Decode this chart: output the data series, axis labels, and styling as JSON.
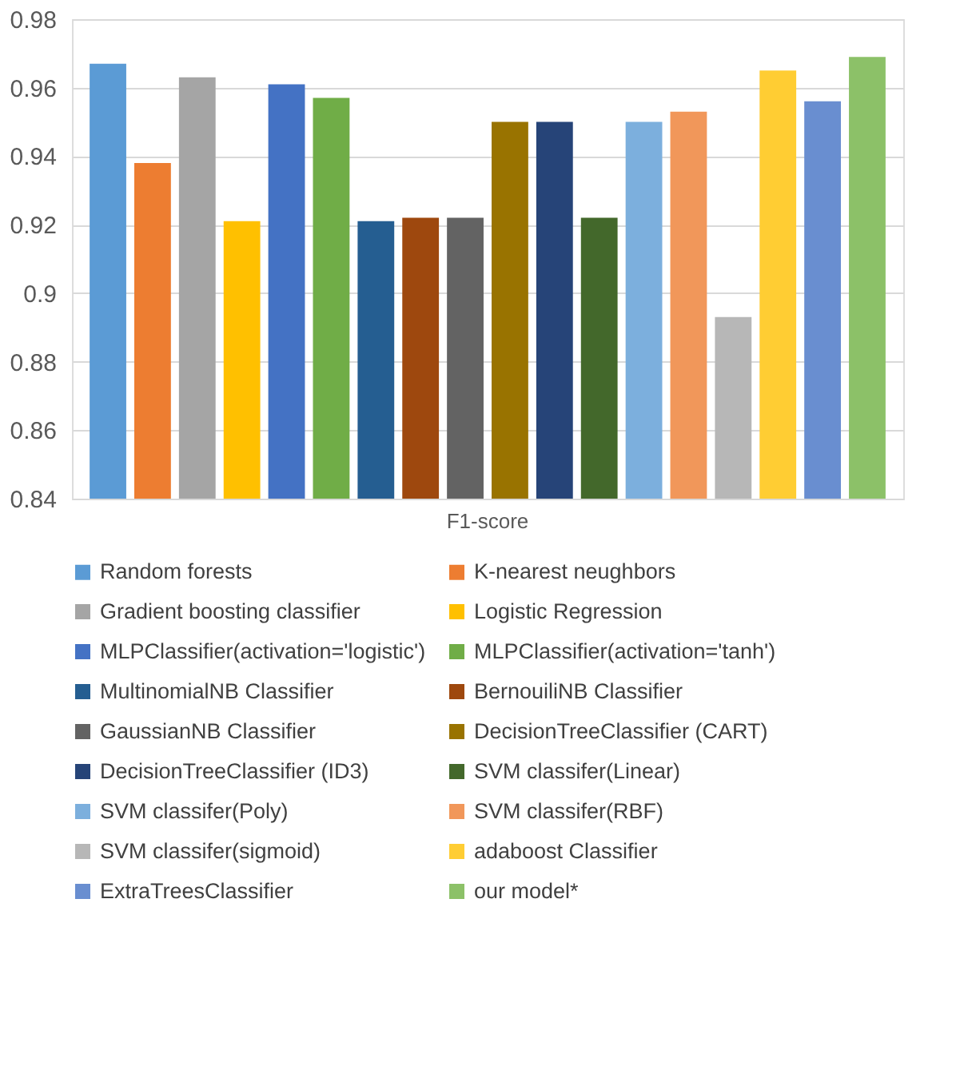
{
  "chart_data": {
    "type": "bar",
    "categories": [
      "F1-score"
    ],
    "series": [
      {
        "name": "Random forests",
        "color": "#5b9bd5",
        "values": [
          0.967
        ]
      },
      {
        "name": "K-nearest neughbors",
        "color": "#ed7d31",
        "values": [
          0.938
        ]
      },
      {
        "name": "Gradient boosting classifier",
        "color": "#a5a5a5",
        "values": [
          0.963
        ]
      },
      {
        "name": "Logistic Regression",
        "color": "#ffc000",
        "values": [
          0.921
        ]
      },
      {
        "name": "MLPClassifier(activation='logistic')",
        "color": "#4472c4",
        "values": [
          0.961
        ]
      },
      {
        "name": "MLPClassifier(activation='tanh')",
        "color": "#70ad47",
        "values": [
          0.957
        ]
      },
      {
        "name": "MultinomialNB  Classifier",
        "color": "#255e91",
        "values": [
          0.921
        ]
      },
      {
        "name": "BernouiliNB Classifier",
        "color": "#9e480e",
        "values": [
          0.922
        ]
      },
      {
        "name": "GaussianNB Classifier",
        "color": "#636363",
        "values": [
          0.922
        ]
      },
      {
        "name": "DecisionTreeClassifier (CART)",
        "color": "#997300",
        "values": [
          0.95
        ]
      },
      {
        "name": "DecisionTreeClassifier (ID3)",
        "color": "#264478",
        "values": [
          0.95
        ]
      },
      {
        "name": "SVM classifer(Linear)",
        "color": "#43682b",
        "values": [
          0.922
        ]
      },
      {
        "name": "SVM classifer(Poly)",
        "color": "#7cafdd",
        "values": [
          0.95
        ]
      },
      {
        "name": "SVM classifer(RBF)",
        "color": "#f1975a",
        "values": [
          0.953
        ]
      },
      {
        "name": "SVM classifer(sigmoid)",
        "color": "#b7b7b7",
        "values": [
          0.893
        ]
      },
      {
        "name": "adaboost Classifier",
        "color": "#ffcd33",
        "values": [
          0.965
        ]
      },
      {
        "name": "ExtraTreesClassifier",
        "color": "#698ed0",
        "values": [
          0.956
        ]
      },
      {
        "name": "our model*",
        "color": "#8cc168",
        "values": [
          0.969
        ]
      }
    ],
    "ylim": [
      0.84,
      0.98
    ],
    "yticks": [
      0.84,
      0.86,
      0.88,
      0.9,
      0.92,
      0.94,
      0.96,
      0.98
    ],
    "grid": "y",
    "legend": "bottom"
  }
}
